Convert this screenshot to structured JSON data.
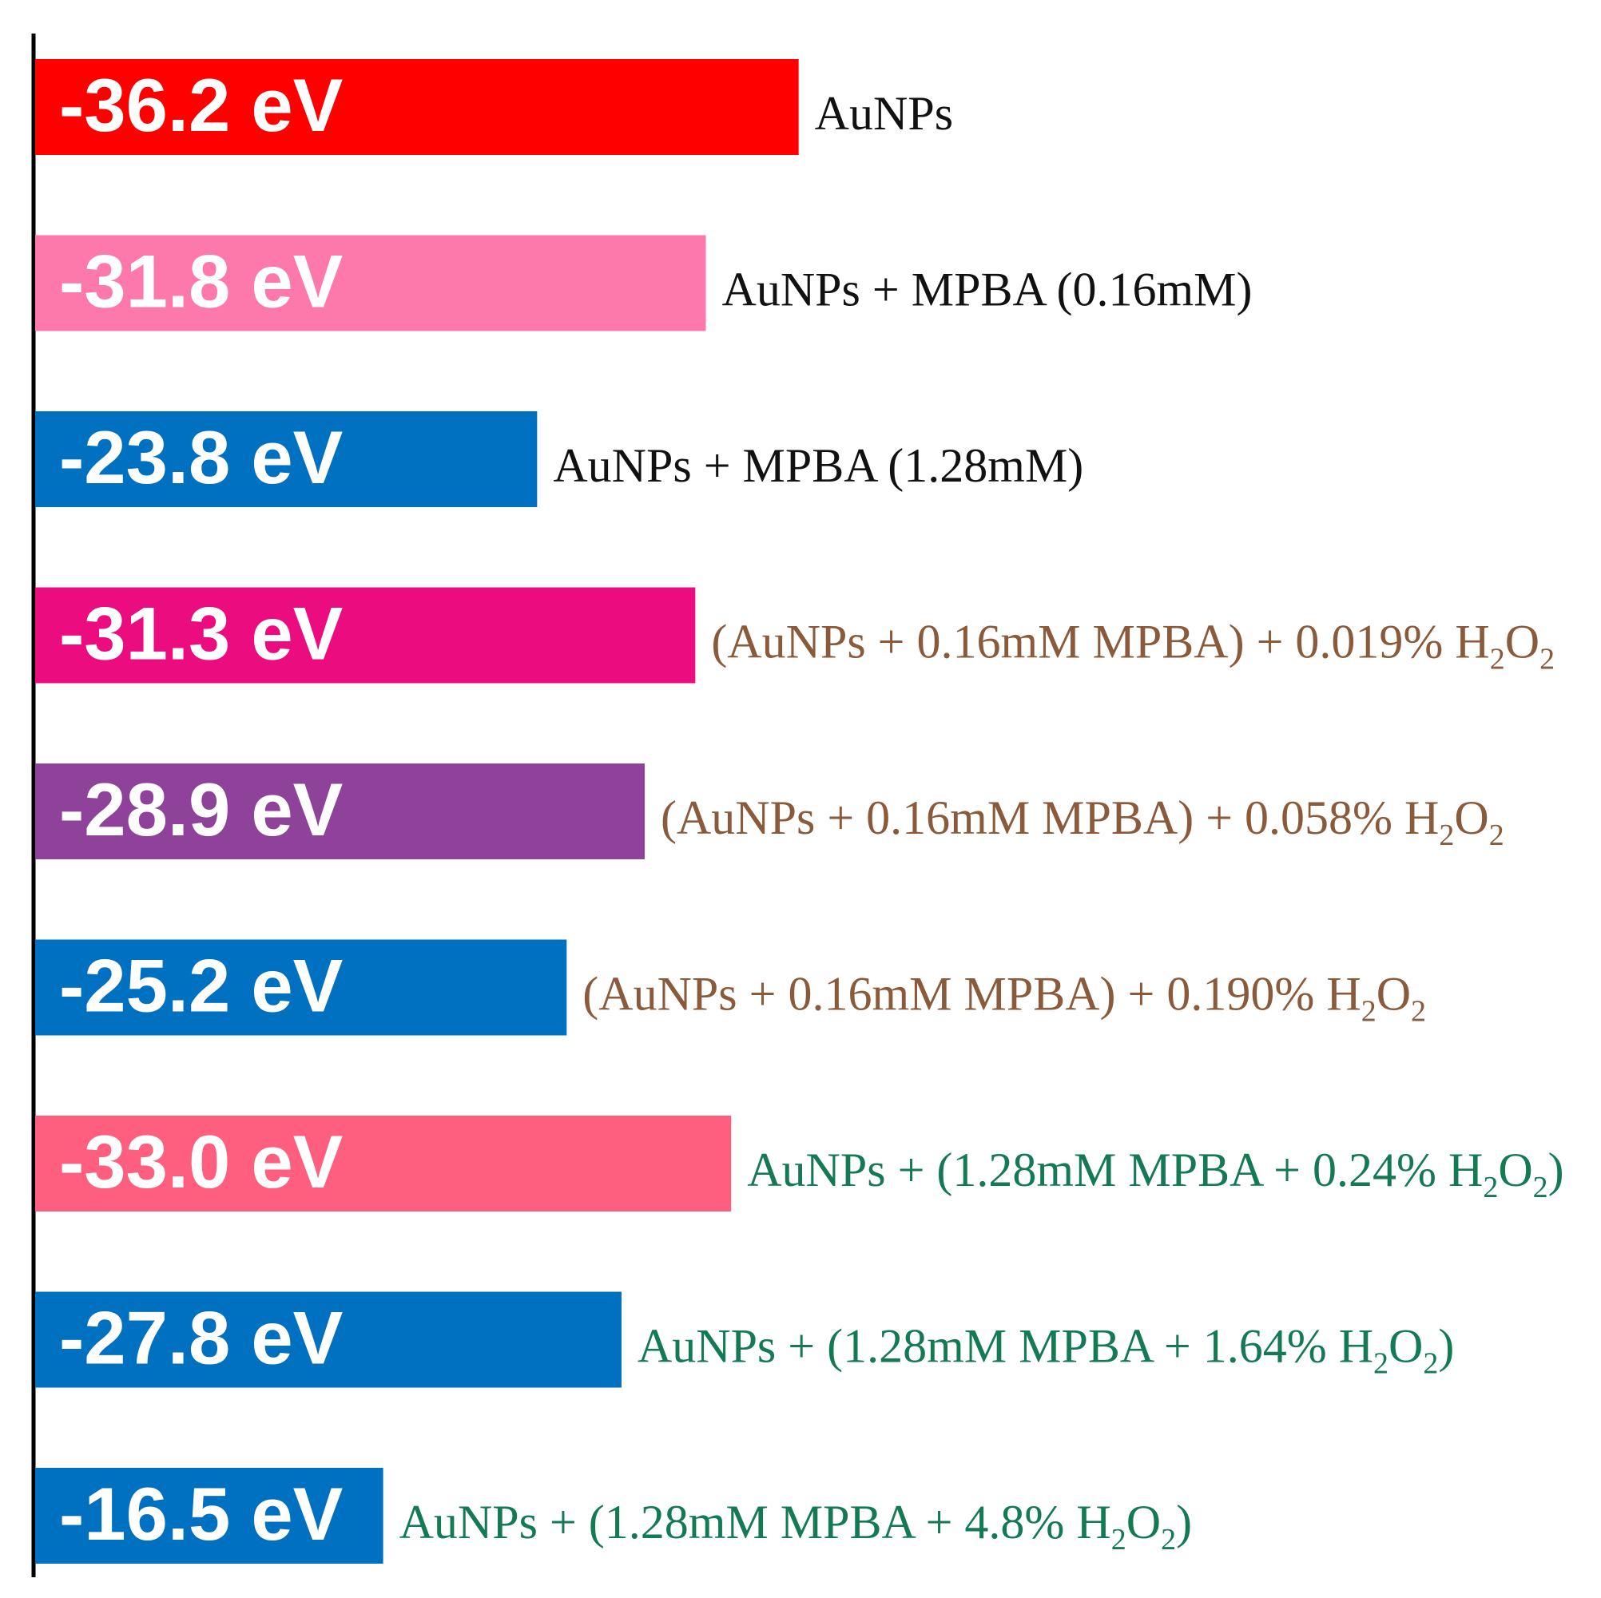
{
  "chart_data": {
    "type": "bar",
    "orientation": "horizontal",
    "unit": "eV",
    "grid": false,
    "bars": [
      {
        "value": -36.2,
        "label_text": "-36.2 eV",
        "color": "#fe0000",
        "category": [
          {
            "t": "AuNPs"
          }
        ],
        "category_color": "#111111"
      },
      {
        "value": -31.8,
        "label_text": "-31.8 eV",
        "color": "#fe79ab",
        "category": [
          {
            "t": "AuNPs + MPBA (0.16mM)"
          }
        ],
        "category_color": "#111111"
      },
      {
        "value": -23.8,
        "label_text": "-23.8 eV",
        "color": "#0070c0",
        "category": [
          {
            "t": "AuNPs + MPBA (1.28mM)"
          }
        ],
        "category_color": "#111111"
      },
      {
        "value": -31.3,
        "label_text": "-31.3 eV",
        "color": "#eb0c7f",
        "category": [
          {
            "t": "(AuNPs + 0.16mM MPBA) + 0.019% H"
          },
          {
            "t": "2",
            "sub": true
          },
          {
            "t": "O"
          },
          {
            "t": "2",
            "sub": true
          }
        ],
        "category_color": "#8a5a3a"
      },
      {
        "value": -28.9,
        "label_text": "-28.9 eV",
        "color": "#8e4299",
        "category": [
          {
            "t": "(AuNPs + 0.16mM MPBA) + 0.058% H"
          },
          {
            "t": "2",
            "sub": true
          },
          {
            "t": "O"
          },
          {
            "t": "2",
            "sub": true
          }
        ],
        "category_color": "#8a5a3a"
      },
      {
        "value": -25.2,
        "label_text": "-25.2 eV",
        "color": "#0070c0",
        "category": [
          {
            "t": "(AuNPs + 0.16mM MPBA) + 0.190% H"
          },
          {
            "t": "2",
            "sub": true
          },
          {
            "t": "O"
          },
          {
            "t": "2",
            "sub": true
          }
        ],
        "category_color": "#8a5a3a"
      },
      {
        "value": -33.0,
        "label_text": "-33.0 eV",
        "color": "#fe5f7f",
        "category": [
          {
            "t": "AuNPs + (1.28mM MPBA + 0.24% H"
          },
          {
            "t": "2",
            "sub": true
          },
          {
            "t": "O"
          },
          {
            "t": "2",
            "sub": true
          },
          {
            "t": ")"
          }
        ],
        "category_color": "#137a54"
      },
      {
        "value": -27.8,
        "label_text": "-27.8 eV",
        "color": "#0070c0",
        "category": [
          {
            "t": "AuNPs + (1.28mM MPBA + 1.64% H"
          },
          {
            "t": "2",
            "sub": true
          },
          {
            "t": "O"
          },
          {
            "t": "2",
            "sub": true
          },
          {
            "t": ")"
          }
        ],
        "category_color": "#137a54"
      },
      {
        "value": -16.5,
        "label_text": "-16.5 eV",
        "color": "#0070c0",
        "category": [
          {
            "t": "AuNPs + (1.28mM MPBA + 4.8% H"
          },
          {
            "t": "2",
            "sub": true
          },
          {
            "t": "O"
          },
          {
            "t": "2",
            "sub": true
          },
          {
            "t": ")"
          }
        ],
        "category_color": "#137a54"
      }
    ]
  }
}
